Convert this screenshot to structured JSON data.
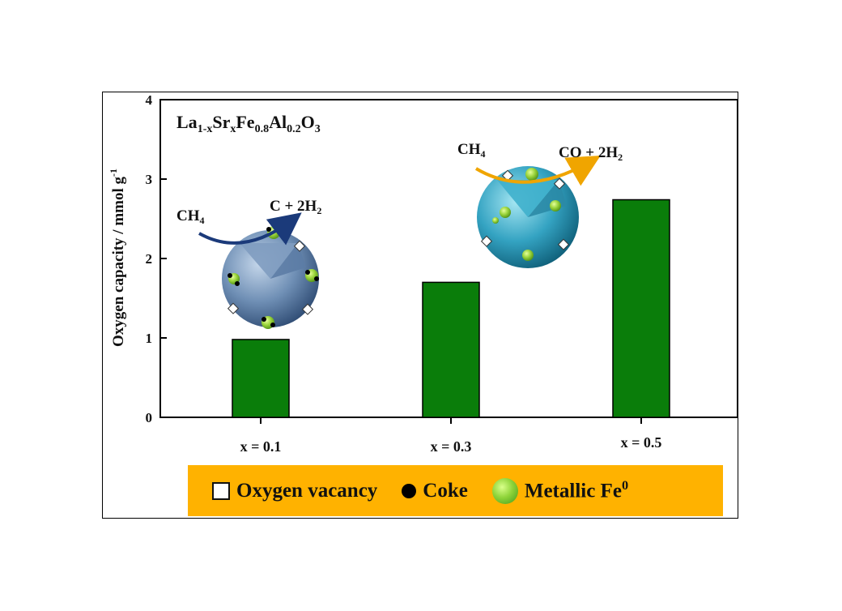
{
  "chart_data": {
    "type": "bar",
    "title": "La1-xSrxFe0.8Al0.2O3",
    "title_parts": {
      "a": "La",
      "b": "1-x",
      "c": "Sr",
      "d": "x",
      "e": "Fe",
      "f": "0.8",
      "g": "Al",
      "h": "0.2",
      "i": "O",
      "j": "3"
    },
    "categories": [
      "x = 0.1",
      "x = 0.3",
      "x = 0.5"
    ],
    "values": [
      0.98,
      1.7,
      2.74
    ],
    "ylabel": "Oxygen capacity / mmol g-1",
    "ylabel_parts": {
      "main": "Oxygen capacity / mmol g",
      "sup": "-1"
    },
    "ylim": [
      0,
      4
    ],
    "yticks": [
      0,
      1,
      2,
      3,
      4
    ],
    "bar_color": "#0a7d0a",
    "grid": false,
    "annotations": {
      "left": {
        "reactant": "CH",
        "reactant_sub": "4",
        "product": "C + 2H",
        "product_sub": "2",
        "arrow_color": "#1b3a7a"
      },
      "right": {
        "reactant": "CH",
        "reactant_sub": "4",
        "product": "CO + 2H",
        "product_sub": "2",
        "arrow_color": "#f0a500"
      }
    }
  },
  "legend": {
    "background": "#ffb200",
    "items": [
      {
        "label": "Oxygen vacancy",
        "icon": "square-icon"
      },
      {
        "label": "Coke",
        "icon": "black-dot-icon"
      },
      {
        "label": "Metallic Fe",
        "sup": "0",
        "icon": "green-sphere-icon"
      }
    ]
  }
}
